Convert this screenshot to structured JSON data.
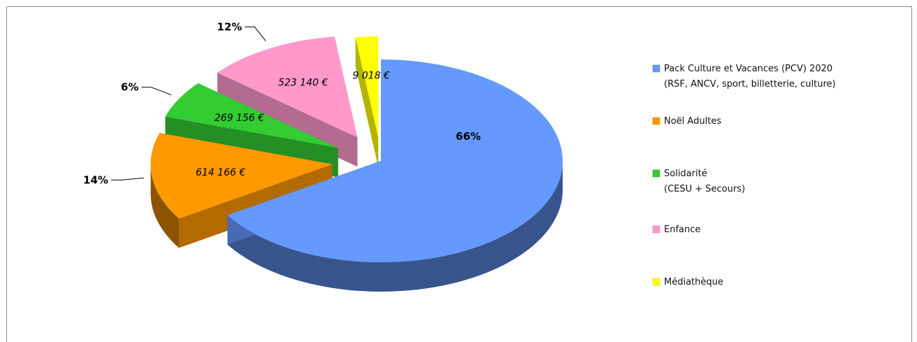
{
  "chart_data": {
    "type": "pie",
    "title": "",
    "slices": [
      {
        "label": [
          "Pack Culture et Vacances (PCV) 2020",
          "(RSF, ANCV, sport, billetterie, culture)"
        ],
        "percent": "66%",
        "value": "",
        "fraction": 0.66,
        "color": "#6699ff"
      },
      {
        "label": [
          "Noël Adultes"
        ],
        "percent": "14%",
        "value": "614 166 €",
        "fraction": 0.14,
        "color": "#ff9900"
      },
      {
        "label": [
          "Solidarité",
          "(CESU + Secours)"
        ],
        "percent": "6%",
        "value": "269 156 €",
        "fraction": 0.06,
        "color": "#33cc33"
      },
      {
        "label": [
          "Enfance"
        ],
        "percent": "12%",
        "value": "523 140 €",
        "fraction": 0.12,
        "color": "#ff99cc"
      },
      {
        "label": [
          "Médiathèque"
        ],
        "percent": "",
        "value": "9 018 €",
        "fraction": 0.02,
        "color": "#ffff00"
      }
    ],
    "legend_position": "right"
  }
}
